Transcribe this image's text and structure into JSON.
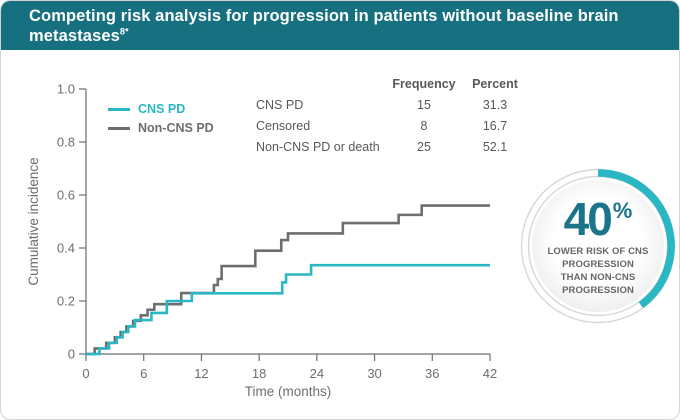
{
  "header": {
    "title": "Competing risk analysis for progression in patients without baseline brain metastases",
    "title_sup": "8*"
  },
  "colors": {
    "header_teal": "#17707f",
    "accent_teal": "#29b7c4",
    "curve_gray": "#6d6e71",
    "axis_gray": "#6d6e71",
    "table_text": "#58595b",
    "badge_number_teal": "#1b7489",
    "badge_caption_gray": "#65666a",
    "ring_gray": "#d7d7d7"
  },
  "stats_table": {
    "headers": [
      "Frequency",
      "Percent"
    ],
    "rows": [
      {
        "label": "CNS PD",
        "frequency": "15",
        "percent": "31.3"
      },
      {
        "label": "Censored",
        "frequency": "8",
        "percent": "16.7"
      },
      {
        "label": "Non-CNS PD or death",
        "frequency": "25",
        "percent": "52.1"
      }
    ]
  },
  "badge": {
    "value": "40",
    "percent_sign": "%",
    "percent_value": 40,
    "lines": [
      "LOWER RISK OF CNS",
      "PROGRESSION",
      "THAN NON-CNS",
      "PROGRESSION"
    ]
  },
  "chart_data": {
    "type": "line",
    "subtype": "step-cumulative-incidence",
    "title": "",
    "xlabel": "Time (months)",
    "ylabel": "Cumulative incidence",
    "xlim": [
      0,
      42
    ],
    "ylim": [
      0,
      1.0
    ],
    "xticks": [
      0,
      6,
      12,
      18,
      24,
      30,
      36,
      42
    ],
    "yticks": [
      0,
      0.2,
      0.4,
      0.6,
      0.8,
      1.0
    ],
    "grid": false,
    "legend_position": "upper-left",
    "series": [
      {
        "name": "Non-CNS PD",
        "color": "#6d6e71",
        "x": [
          0,
          0.9,
          2.1,
          3.0,
          3.6,
          4.2,
          4.9,
          5.7,
          6.4,
          7.1,
          9.9,
          13.3,
          13.7,
          14.1,
          17.6,
          20.3,
          21.0,
          26.7,
          32.5,
          34.9,
          42
        ],
        "y": [
          0,
          0.021,
          0.042,
          0.063,
          0.083,
          0.104,
          0.125,
          0.146,
          0.167,
          0.188,
          0.23,
          0.26,
          0.283,
          0.332,
          0.39,
          0.43,
          0.455,
          0.494,
          0.525,
          0.56,
          0.56
        ]
      },
      {
        "name": "CNS PD",
        "color": "#29b7c4",
        "x": [
          0,
          1.4,
          2.4,
          3.2,
          3.8,
          4.4,
          5.1,
          6.8,
          8.4,
          11.0,
          20.4,
          20.8,
          23.4,
          42
        ],
        "y": [
          0,
          0.021,
          0.042,
          0.063,
          0.083,
          0.104,
          0.128,
          0.155,
          0.2,
          0.229,
          0.27,
          0.3,
          0.335,
          0.335
        ]
      }
    ]
  }
}
